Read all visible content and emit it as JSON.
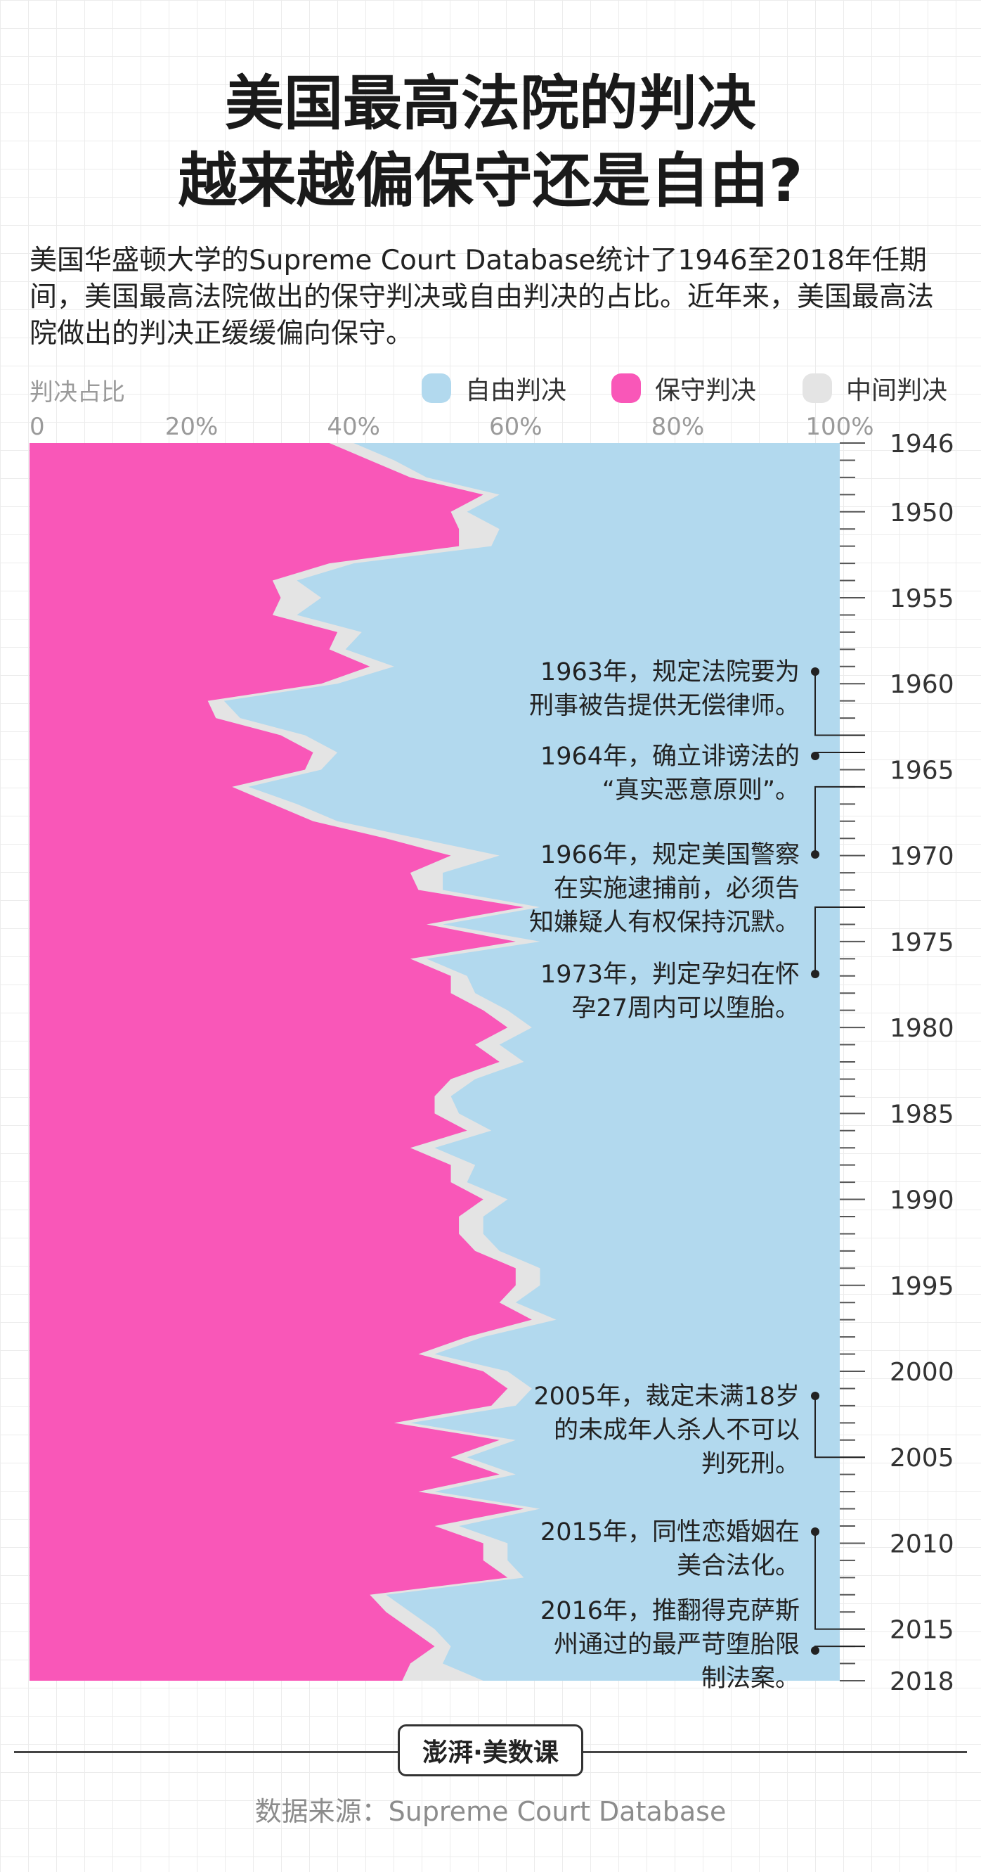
{
  "header": {
    "title_line1": "美国最高法院的判决",
    "title_line2": "越来越偏保守还是自由?",
    "subtitle": "美国华盛顿大学的Supreme Court Database统计了1946至2018年任期间，美国最高法院做出的保守判决或自由判决的占比。近年来，美国最高法院做出的判决正缓缓偏向保守。"
  },
  "colors": {
    "conservative": "#f957b8",
    "liberal": "#b2d9ee",
    "neutral": "#e4e4e4",
    "axis": "#555555"
  },
  "chart_data": {
    "type": "area",
    "orientation": "horizontal-stacked",
    "ylabel": "判决占比",
    "xlim": [
      0,
      100
    ],
    "x_ticks": [
      "0",
      "20%",
      "40%",
      "60%",
      "80%",
      "100%"
    ],
    "year_ticks": [
      "1946",
      "1950",
      "1955",
      "1960",
      "1965",
      "1970",
      "1975",
      "1980",
      "1985",
      "1990",
      "1995",
      "2000",
      "2005",
      "2010",
      "2015",
      "2018"
    ],
    "legend": [
      {
        "key": "liberal",
        "label": "自由判决"
      },
      {
        "key": "conservative",
        "label": "保守判决"
      },
      {
        "key": "neutral",
        "label": "中间判决"
      }
    ],
    "years": [
      1946,
      1947,
      1948,
      1949,
      1950,
      1951,
      1952,
      1953,
      1954,
      1955,
      1956,
      1957,
      1958,
      1959,
      1960,
      1961,
      1962,
      1963,
      1964,
      1965,
      1966,
      1967,
      1968,
      1969,
      1970,
      1971,
      1972,
      1973,
      1974,
      1975,
      1976,
      1977,
      1978,
      1979,
      1980,
      1981,
      1982,
      1983,
      1984,
      1985,
      1986,
      1987,
      1988,
      1989,
      1990,
      1991,
      1992,
      1993,
      1994,
      1995,
      1996,
      1997,
      1998,
      1999,
      2000,
      2001,
      2002,
      2003,
      2004,
      2005,
      2006,
      2007,
      2008,
      2009,
      2010,
      2011,
      2012,
      2013,
      2014,
      2015,
      2016,
      2017,
      2018
    ],
    "conservative": [
      37,
      42,
      47,
      56,
      52,
      53,
      53,
      37,
      30,
      31,
      30,
      38,
      37,
      42,
      36,
      22,
      23,
      31,
      35,
      34,
      25,
      30,
      35,
      44,
      52,
      47,
      48,
      61,
      49,
      60,
      47,
      52,
      52,
      56,
      59,
      55,
      58,
      52,
      50,
      50,
      54,
      47,
      52,
      52,
      56,
      53,
      53,
      55,
      60,
      60,
      58,
      62,
      54,
      48,
      56,
      59,
      57,
      45,
      58,
      52,
      58,
      48,
      61,
      50,
      56,
      56,
      59,
      42,
      44,
      47,
      50,
      47,
      46
    ],
    "neutral": [
      3,
      3,
      2,
      2,
      2,
      5,
      4,
      3,
      3,
      5,
      3,
      3,
      2,
      3,
      2,
      2,
      3,
      3,
      3,
      2,
      2,
      3,
      3,
      4,
      6,
      4,
      3,
      2,
      2,
      3,
      2,
      2,
      3,
      3,
      3,
      3,
      3,
      3,
      2,
      3,
      3,
      3,
      3,
      2,
      3,
      3,
      3,
      3,
      3,
      3,
      2,
      3,
      2,
      2,
      3,
      3,
      3,
      2,
      2,
      2,
      2,
      2,
      2,
      3,
      3,
      3,
      2,
      2,
      3,
      3,
      2,
      4,
      10
    ],
    "liberal_note": "remainder to 100%"
  },
  "annotations": [
    {
      "year": 1963,
      "lines": [
        "1963年，规定法院要为",
        "刑事被告提供无偿律师。"
      ]
    },
    {
      "year": 1964,
      "lines": [
        "1964年，确立诽谤法的",
        "“真实恶意原则”。"
      ]
    },
    {
      "year": 1966,
      "lines": [
        "1966年，规定美国警察",
        "在实施逮捕前，必须告",
        "知嫌疑人有权保持沉默。"
      ]
    },
    {
      "year": 1973,
      "lines": [
        "1973年，判定孕妇在怀",
        "孕27周内可以堕胎。"
      ]
    },
    {
      "year": 2005,
      "lines": [
        "2005年，裁定未满18岁",
        "的未成年人杀人不可以",
        "判死刑。"
      ]
    },
    {
      "year": 2015,
      "lines": [
        "2015年，同性恋婚姻在",
        "美合法化。"
      ]
    },
    {
      "year": 2016,
      "lines": [
        "2016年，推翻得克萨斯",
        "州通过的最严苛堕胎限",
        "制法案。"
      ]
    }
  ],
  "footer": {
    "logo_text": "澎湃·美数课",
    "source": "数据来源：Supreme Court Database"
  }
}
